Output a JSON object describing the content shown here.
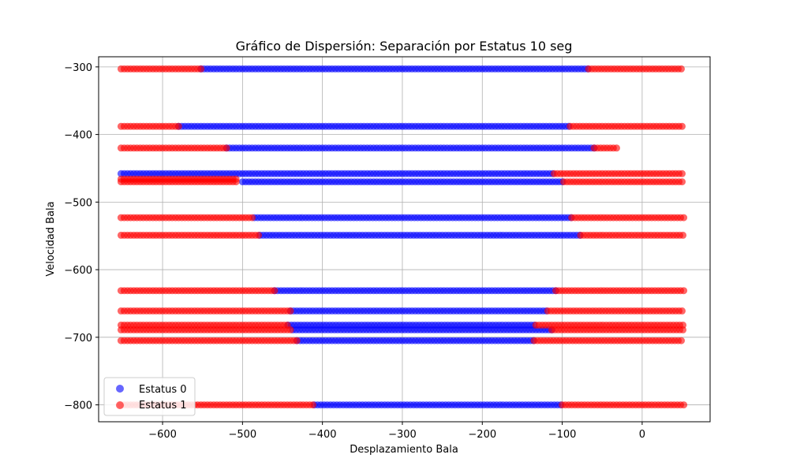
{
  "chart_data": {
    "type": "scatter",
    "title": "Gráfico de Dispersión: Separación por Estatus 10 seg",
    "xlabel": "Desplazamiento Bala",
    "ylabel": "Velocidad Bala",
    "xlim": [
      -680,
      85
    ],
    "ylim": [
      -825,
      -285
    ],
    "xticks": [
      -600,
      -500,
      -400,
      -300,
      -200,
      -100,
      0
    ],
    "xtick_labels": [
      "−600",
      "−500",
      "−400",
      "−300",
      "−200",
      "−100",
      "0"
    ],
    "yticks": [
      -800,
      -700,
      -600,
      -500,
      -400,
      -300
    ],
    "ytick_labels": [
      "−800",
      "−700",
      "−600",
      "−500",
      "−400",
      "−300"
    ],
    "grid": true,
    "legend_position": "lower-left",
    "colors": {
      "Estatus 0": "#0000ff",
      "Estatus 1": "#ff0000"
    },
    "series": [
      {
        "name": "Estatus 0",
        "color": "#0000ff",
        "segments": [
          {
            "y": -303,
            "x_start": -552,
            "x_end": -67
          },
          {
            "y": -388,
            "x_start": -580,
            "x_end": -90
          },
          {
            "y": -420,
            "x_start": -520,
            "x_end": -60
          },
          {
            "y": -458,
            "x_start": -652,
            "x_end": -110
          },
          {
            "y": -470,
            "x_start": -500,
            "x_end": -98
          },
          {
            "y": -523,
            "x_start": -485,
            "x_end": -88
          },
          {
            "y": -549,
            "x_start": -478,
            "x_end": -77
          },
          {
            "y": -631,
            "x_start": -460,
            "x_end": -108
          },
          {
            "y": -661,
            "x_start": -440,
            "x_end": -118
          },
          {
            "y": -682,
            "x_start": -443,
            "x_end": -133
          },
          {
            "y": -689,
            "x_start": -437,
            "x_end": -113
          },
          {
            "y": -705,
            "x_start": -432,
            "x_end": -135
          },
          {
            "y": -800,
            "x_start": -410,
            "x_end": -100
          }
        ]
      },
      {
        "name": "Estatus 1",
        "color": "#ff0000",
        "segments": [
          {
            "y": -303,
            "x_start": -652,
            "x_end": -552
          },
          {
            "y": -303,
            "x_start": -67,
            "x_end": 52
          },
          {
            "y": -388,
            "x_start": -652,
            "x_end": -580
          },
          {
            "y": -388,
            "x_start": -90,
            "x_end": 52
          },
          {
            "y": -420,
            "x_start": -652,
            "x_end": -520
          },
          {
            "y": -420,
            "x_start": -60,
            "x_end": -30
          },
          {
            "y": -458,
            "x_start": -110,
            "x_end": 52
          },
          {
            "y": -466,
            "x_start": -652,
            "x_end": -505
          },
          {
            "y": -470,
            "x_start": -652,
            "x_end": -505
          },
          {
            "y": -470,
            "x_start": -98,
            "x_end": 52
          },
          {
            "y": -523,
            "x_start": -652,
            "x_end": -485
          },
          {
            "y": -523,
            "x_start": -88,
            "x_end": 52
          },
          {
            "y": -549,
            "x_start": -652,
            "x_end": -478
          },
          {
            "y": -549,
            "x_start": -77,
            "x_end": 52
          },
          {
            "y": -631,
            "x_start": -652,
            "x_end": -460
          },
          {
            "y": -631,
            "x_start": -108,
            "x_end": 52
          },
          {
            "y": -661,
            "x_start": -652,
            "x_end": -440
          },
          {
            "y": -661,
            "x_start": -118,
            "x_end": 52
          },
          {
            "y": -682,
            "x_start": -652,
            "x_end": -443
          },
          {
            "y": -682,
            "x_start": -133,
            "x_end": 52
          },
          {
            "y": -689,
            "x_start": -652,
            "x_end": -437
          },
          {
            "y": -689,
            "x_start": -113,
            "x_end": 52
          },
          {
            "y": -705,
            "x_start": -652,
            "x_end": -432
          },
          {
            "y": -705,
            "x_start": -135,
            "x_end": 52
          },
          {
            "y": -800,
            "x_start": -652,
            "x_end": -410
          },
          {
            "y": -800,
            "x_start": -100,
            "x_end": 52
          }
        ]
      }
    ],
    "legend": [
      {
        "label": "Estatus 0",
        "color": "#0000ff"
      },
      {
        "label": "Estatus 1",
        "color": "#ff0000"
      }
    ]
  }
}
